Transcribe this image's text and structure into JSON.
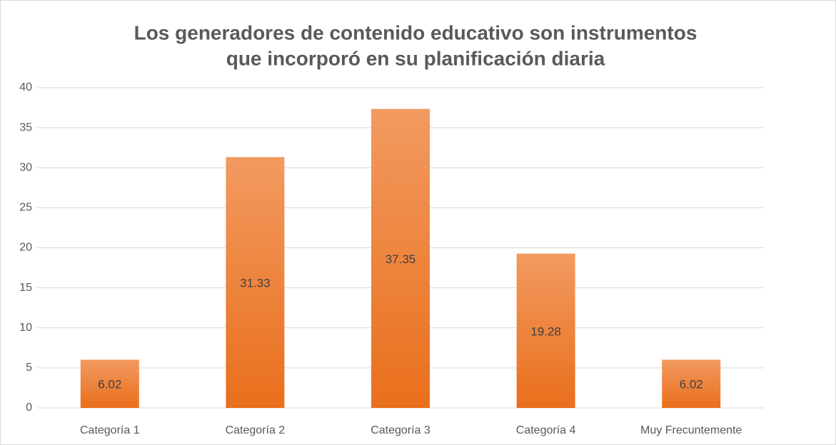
{
  "chart_data": {
    "type": "bar",
    "title": [
      "Los generadores de contenido educativo son instrumentos",
      "que incorporó en su planificación diaria"
    ],
    "categories": [
      "Categoría 1",
      "Categoría 2",
      "Categoría 3",
      "Categoría 4",
      "Muy Frecuntemente"
    ],
    "values": [
      6.02,
      31.33,
      37.35,
      19.28,
      6.02
    ],
    "color": "#ed7d31",
    "ylim": [
      0,
      40
    ],
    "yticks": [
      0,
      5,
      10,
      15,
      20,
      25,
      30,
      35,
      40
    ],
    "grid": true,
    "data_labels": true
  }
}
